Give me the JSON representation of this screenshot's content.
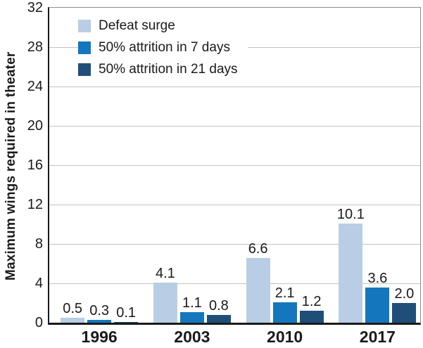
{
  "chart_data": {
    "type": "bar",
    "title": "",
    "xlabel": "",
    "ylabel": "Maximum wings required in theater",
    "categories": [
      "1996",
      "2003",
      "2010",
      "2017"
    ],
    "series": [
      {
        "name": "Defeat surge",
        "color": "#b9cde5",
        "values": [
          0.5,
          4.1,
          6.6,
          10.1
        ]
      },
      {
        "name": "50% attrition in 7 days",
        "color": "#1477bd",
        "values": [
          0.3,
          1.1,
          2.1,
          3.6
        ]
      },
      {
        "name": "50% attrition in 21 days",
        "color": "#1f4e79",
        "values": [
          0.1,
          0.8,
          1.2,
          2.0
        ]
      }
    ],
    "ylim": [
      0,
      32
    ],
    "yticks": [
      0,
      4,
      8,
      12,
      16,
      20,
      24,
      28,
      32
    ],
    "grid": true,
    "value_labels": true,
    "value_label_format": "0.0",
    "legend_position": "top-left"
  },
  "colors": {
    "gridline": "#c3c3c3",
    "plot_border": "#8c8c8c",
    "axis": "#1a1a1a",
    "text": "#1a1a1a",
    "background": "#ffffff"
  }
}
